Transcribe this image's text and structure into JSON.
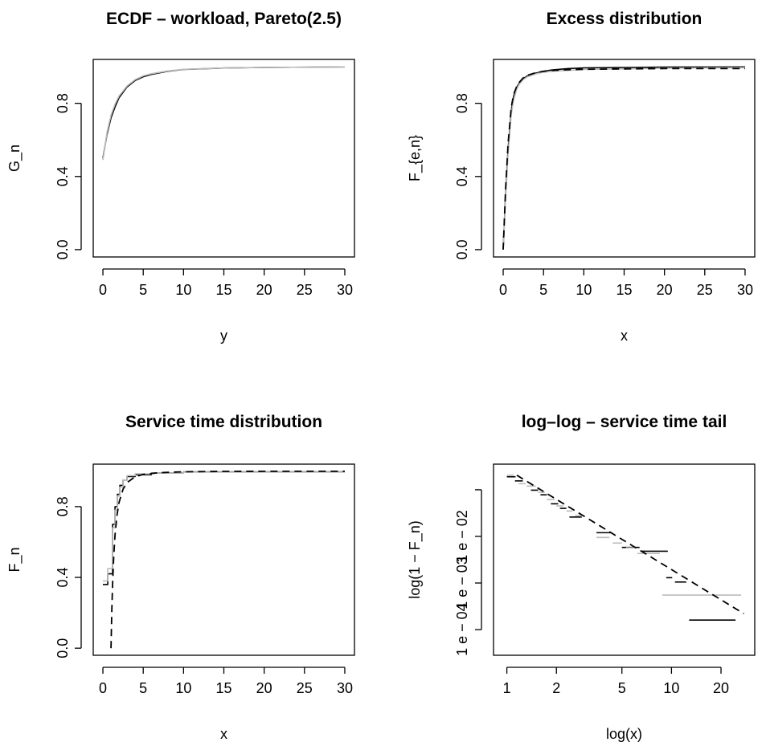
{
  "chart_data": [
    {
      "type": "line",
      "title": "ECDF – workload, Pareto(2.5)",
      "xlabel": "y",
      "ylabel": "G_n",
      "xlim": [
        0,
        30
      ],
      "ylim": [
        0,
        1
      ],
      "xticks": [
        0,
        5,
        10,
        15,
        20,
        25,
        30
      ],
      "yticks": [
        0.0,
        0.4,
        0.8
      ],
      "ytick_labels": [
        "0.0",
        "0.4",
        "0.8"
      ],
      "series": [
        {
          "style": "solid",
          "color": "#000000",
          "x": [
            0,
            0.5,
            1,
            1.5,
            2,
            3,
            4,
            5,
            6,
            8,
            10,
            15,
            20,
            30
          ],
          "y": [
            0.5,
            0.63,
            0.72,
            0.78,
            0.83,
            0.89,
            0.925,
            0.945,
            0.958,
            0.975,
            0.985,
            0.993,
            0.996,
            0.999
          ]
        },
        {
          "style": "solid",
          "color": "#bbbbbb",
          "x": [
            0,
            0.5,
            1,
            1.5,
            2,
            3,
            4,
            5,
            6,
            8,
            10,
            15,
            20,
            30
          ],
          "y": [
            0.49,
            0.64,
            0.735,
            0.795,
            0.84,
            0.895,
            0.93,
            0.95,
            0.962,
            0.977,
            0.986,
            0.993,
            0.996,
            0.999
          ]
        }
      ]
    },
    {
      "type": "line",
      "title": "Excess distribution",
      "xlabel": "x",
      "ylabel": "F_{e,n}",
      "xlim": [
        0,
        30
      ],
      "ylim": [
        0,
        1
      ],
      "xticks": [
        0,
        5,
        10,
        15,
        20,
        25,
        30
      ],
      "yticks": [
        0.0,
        0.4,
        0.8
      ],
      "ytick_labels": [
        "0.0",
        "0.4",
        "0.8"
      ],
      "series": [
        {
          "style": "solid",
          "color": "#000000",
          "x": [
            0,
            0.3,
            0.6,
            1,
            1.3,
            1.7,
            2,
            2.5,
            3,
            4,
            5,
            6,
            8,
            10,
            15,
            20,
            30
          ],
          "y": [
            0.0,
            0.3,
            0.55,
            0.76,
            0.84,
            0.89,
            0.91,
            0.935,
            0.95,
            0.965,
            0.975,
            0.982,
            0.99,
            0.994,
            0.996,
            0.998,
            0.999
          ]
        },
        {
          "style": "solid",
          "color": "#bbbbbb",
          "x": [
            0,
            0.3,
            0.6,
            1,
            1.3,
            1.7,
            2,
            2.5,
            3,
            4,
            5,
            6,
            8,
            10,
            15,
            20,
            30
          ],
          "y": [
            0.0,
            0.28,
            0.52,
            0.74,
            0.82,
            0.88,
            0.905,
            0.93,
            0.945,
            0.96,
            0.97,
            0.975,
            0.98,
            0.985,
            0.988,
            0.992,
            0.995
          ]
        },
        {
          "style": "dashed",
          "color": "#000000",
          "x": [
            0,
            0.3,
            0.6,
            1,
            1.3,
            1.7,
            2,
            2.5,
            3,
            4,
            5,
            6,
            8,
            10,
            15,
            20,
            30
          ],
          "y": [
            0.0,
            0.33,
            0.58,
            0.78,
            0.85,
            0.895,
            0.915,
            0.94,
            0.953,
            0.967,
            0.975,
            0.98,
            0.984,
            0.986,
            0.988,
            0.99,
            0.99
          ]
        }
      ]
    },
    {
      "type": "line",
      "title": "Service time distribution",
      "xlabel": "x",
      "ylabel": "F_n",
      "xlim": [
        0,
        30
      ],
      "ylim": [
        0,
        1
      ],
      "xticks": [
        0,
        5,
        10,
        15,
        20,
        25,
        30
      ],
      "yticks": [
        0.0,
        0.4,
        0.8
      ],
      "ytick_labels": [
        "0.0",
        "0.4",
        "0.8"
      ],
      "series": [
        {
          "style": "solid-steps",
          "color": "#000000",
          "x": [
            0,
            0.6,
            0.6,
            1.2,
            1.2,
            1.5,
            1.5,
            1.8,
            1.8,
            2.1,
            2.1,
            2.5,
            2.5,
            3,
            3,
            4,
            4,
            6,
            6,
            10,
            10,
            30
          ],
          "y": [
            0.36,
            0.36,
            0.42,
            0.42,
            0.7,
            0.7,
            0.8,
            0.8,
            0.87,
            0.87,
            0.92,
            0.92,
            0.95,
            0.95,
            0.97,
            0.97,
            0.98,
            0.98,
            0.99,
            0.99,
            0.996,
            0.996
          ]
        },
        {
          "style": "solid-steps",
          "color": "#bbbbbb",
          "x": [
            0,
            0.6,
            0.6,
            1.2,
            1.2,
            1.5,
            1.5,
            1.8,
            1.8,
            2.1,
            2.1,
            2.5,
            2.5,
            3,
            3,
            4,
            4,
            6,
            6,
            10,
            10,
            30
          ],
          "y": [
            0.38,
            0.38,
            0.45,
            0.45,
            0.68,
            0.68,
            0.78,
            0.78,
            0.86,
            0.86,
            0.91,
            0.91,
            0.95,
            0.95,
            0.975,
            0.975,
            0.985,
            0.985,
            0.99,
            0.99,
            0.995,
            0.995
          ]
        },
        {
          "style": "dashed",
          "color": "#000000",
          "x": [
            1.0,
            1.1,
            1.2,
            1.35,
            1.5,
            1.75,
            2,
            2.5,
            3,
            4,
            5,
            7,
            10,
            15,
            20,
            30
          ],
          "y": [
            0.0,
            0.212,
            0.366,
            0.528,
            0.638,
            0.753,
            0.823,
            0.899,
            0.936,
            0.969,
            0.982,
            0.992,
            0.997,
            0.999,
            0.9994,
            0.9998
          ]
        }
      ]
    },
    {
      "type": "line",
      "title": "log–log – service time tail",
      "xlabel": "log(x)",
      "ylabel": "log(1 − F_n)",
      "xscale": "log",
      "yscale": "log",
      "xlim": [
        0.95,
        28
      ],
      "ylim": [
        4e-05,
        0.25
      ],
      "xticks": [
        1,
        2,
        5,
        10,
        20
      ],
      "yticks": [
        0.0001,
        0.001,
        0.01,
        0.1
      ],
      "ytick_labels": [
        "1 e − 04",
        "1 e − 03",
        "1 e − 02",
        ""
      ],
      "series": [
        {
          "style": "steps",
          "color": "#000000",
          "segments": [
            [
              1.0,
              1.13,
              0.19
            ],
            [
              1.12,
              1.25,
              0.155
            ],
            [
              1.4,
              1.55,
              0.098
            ],
            [
              1.6,
              1.75,
              0.078
            ],
            [
              1.85,
              2.05,
              0.05
            ],
            [
              2.1,
              2.3,
              0.04
            ],
            [
              2.4,
              2.85,
              0.026
            ],
            [
              3.5,
              4.3,
              0.012
            ],
            [
              5.0,
              6.4,
              0.0058
            ],
            [
              6.6,
              9.5,
              0.0048
            ],
            [
              9.3,
              10.1,
              0.0013
            ],
            [
              10.5,
              12.3,
              0.00105
            ],
            [
              12.8,
              24.5,
              0.00016
            ]
          ]
        },
        {
          "style": "steps",
          "color": "#bbbbbb",
          "segments": [
            [
              1.0,
              1.1,
              0.205
            ],
            [
              1.18,
              1.3,
              0.135
            ],
            [
              1.32,
              1.5,
              0.12
            ],
            [
              1.55,
              1.7,
              0.088
            ],
            [
              1.75,
              1.95,
              0.062
            ],
            [
              2.0,
              2.2,
              0.045
            ],
            [
              2.3,
              2.5,
              0.035
            ],
            [
              2.6,
              2.85,
              0.028
            ],
            [
              3.5,
              4.2,
              0.0095
            ],
            [
              4.4,
              5.0,
              0.0072
            ],
            [
              5.3,
              6.0,
              0.0057
            ],
            [
              6.2,
              8.5,
              0.0043
            ],
            [
              8.8,
              26.5,
              0.00055
            ]
          ]
        },
        {
          "style": "dashed",
          "color": "#000000",
          "x": [
            1.15,
            27.5
          ],
          "y": [
            0.205,
            0.00022
          ]
        }
      ]
    }
  ]
}
